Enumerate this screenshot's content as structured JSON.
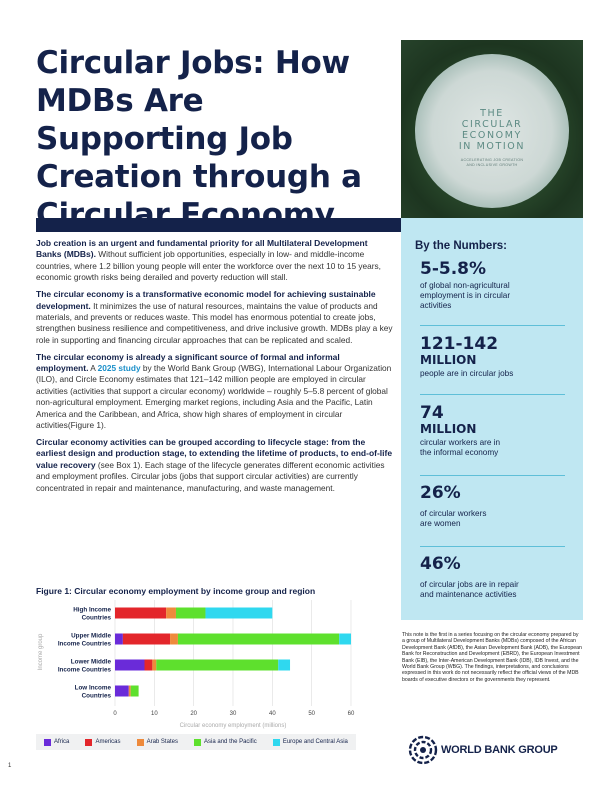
{
  "title": "Circular Jobs: How MDBs Are Supporting Job Creation through a Circular Economy",
  "cover": {
    "title": "THE\nCIRCULAR\nECONOMY\nIN MOTION",
    "subtitle": "ACCELERATING JOB CREATION\nAND INCLUSIVE GROWTH"
  },
  "body": {
    "p1_bold": "Job creation is an urgent and fundamental priority for all Multilateral Development Banks (MDBs).",
    "p1_text": " Without sufficient job opportunities, especially in low- and middle-income countries, where 1.2 billion young people will enter the workforce over the next 10 to 15 years, economic growth risks being derailed and poverty reduction will stall.",
    "p2_bold": "The circular economy is a transformative economic model for achieving sustainable development.",
    "p2_text": " It minimizes the use of natural resources, maintains the value of products and materials, and prevents or reduces waste. This model has enormous potential to create jobs, strengthen business resilience and competitiveness, and drive inclusive growth. MDBs play a key role in supporting and financing circular approaches that can be replicated and scaled.",
    "p3_bold": "The circular economy is already a significant source of formal and informal employment.",
    "p3_text_a": " A ",
    "p3_link": "2025 study",
    "p3_text_b": " by the World Bank Group (WBG), International Labour Organization (ILO), and Circle Economy estimates that 121–142 million people are employed in circular activities (activities that support a circular economy) worldwide – roughly 5–5.8 percent of global non-agricultural employment. Emerging market regions, including Asia and the Pacific, Latin America and the Caribbean, and Africa, show high shares of employment in circular activities(Figure 1).",
    "p4_bold": "Circular economy activities can be grouped according to lifecycle stage: from the earliest design and production stage, to extending the lifetime of products, to end-of-life value recovery",
    "p4_text": " (see Box 1). Each stage of the lifecycle generates different economic activities and employment profiles.  Circular jobs (jobs that support circular activities) are currently concentrated in repair and maintenance, manufacturing, and waste management."
  },
  "figure_title": "Figure 1: Circular economy employment by income group and region",
  "chart_data": {
    "type": "bar",
    "orientation": "horizontal",
    "stacked": true,
    "categories": [
      "High Income Countries",
      "Upper Middle Income Countries",
      "Lower Middle Income Countries",
      "Low Income Countries"
    ],
    "category_lines": [
      [
        "High Income",
        "Countries"
      ],
      [
        "Upper Middle",
        "Income Countries"
      ],
      [
        "Lower Middle",
        "Income Countries"
      ],
      [
        "Low Income",
        "Countries"
      ]
    ],
    "series": [
      {
        "name": "Africa",
        "color": "#6a2bd9",
        "values": [
          0,
          2,
          7.5,
          3.5
        ]
      },
      {
        "name": "Americas",
        "color": "#e3262b",
        "values": [
          13,
          12,
          2,
          0
        ]
      },
      {
        "name": "Arab States",
        "color": "#ee8a3c",
        "values": [
          2.5,
          2,
          1,
          0.5
        ]
      },
      {
        "name": "Asia and the Pacific",
        "color": "#5ee02d",
        "values": [
          7.5,
          41,
          31,
          2
        ]
      },
      {
        "name": "Europe and Central Asia",
        "color": "#2fd8ef",
        "values": [
          17,
          3,
          3,
          0
        ]
      }
    ],
    "xlabel": "Circular economy employment (millions)",
    "ylabel": "Income group",
    "xlim": [
      0,
      60
    ],
    "xticks": [
      0,
      10,
      20,
      30,
      40,
      50,
      60
    ],
    "grid": true,
    "legend": "bottom"
  },
  "numbers": {
    "heading": "By the Numbers:",
    "stats": [
      {
        "value": "5-5.8%",
        "unit": "",
        "text": "of global non-agricultural\nemployment is in circular\nactivities"
      },
      {
        "value": "121-142",
        "unit": "MILLION",
        "text": "people are in circular jobs"
      },
      {
        "value": "74",
        "unit": "MILLION",
        "text": "circular workers are in\nthe informal economy"
      },
      {
        "value": "26%",
        "unit": "",
        "text": "of circular workers\nare women"
      },
      {
        "value": "46%",
        "unit": "",
        "text": "of circular jobs are in repair\nand maintenance activities"
      }
    ]
  },
  "note": "This note is the first in a series focusing on the circular economy prepared by a group of Multilateral Development Banks (MDBs) composed of the African Development Bank (AfDB), the Asian Development Bank (ADB), the European Bank for Reconstruction and Development (EBRD), the European Investment Bank (EIB), the Inter-American Development Bank (IDB), IDB Invest, and the World Bank Group (WBG). The findings, interpretations, and conclusions expressed in this work do not necessarily reflect the official views of the MDB boards of executive directors or the governments they represent.",
  "logo_text": "WORLD BANK GROUP",
  "page_number": "1"
}
